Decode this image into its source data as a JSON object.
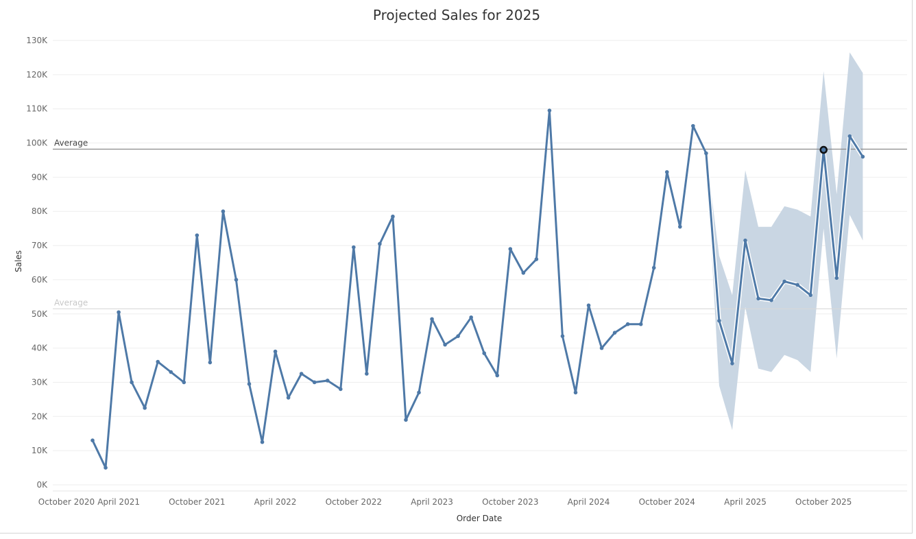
{
  "title": "Projected Sales for 2025",
  "chart_data": {
    "type": "line",
    "title": "Projected Sales for 2025",
    "xlabel": "Order Date",
    "ylabel": "Sales",
    "ylim": [
      0,
      130000
    ],
    "y_ticks": [
      "0K",
      "10K",
      "20K",
      "30K",
      "40K",
      "50K",
      "60K",
      "70K",
      "80K",
      "90K",
      "100K",
      "110K",
      "120K",
      "130K"
    ],
    "x_ticks": [
      {
        "label": "October 2020",
        "month_index": 0
      },
      {
        "label": "April 2021",
        "month_index": 3
      },
      {
        "label": "October 2021",
        "month_index": 9
      },
      {
        "label": "April 2022",
        "month_index": 15
      },
      {
        "label": "October 2022",
        "month_index": 21
      },
      {
        "label": "April 2023",
        "month_index": 27
      },
      {
        "label": "October 2023",
        "month_index": 33
      },
      {
        "label": "April 2024",
        "month_index": 39
      },
      {
        "label": "October 2024",
        "month_index": 45
      },
      {
        "label": "April 2025",
        "month_index": 51
      },
      {
        "label": "October 2025",
        "month_index": 57
      }
    ],
    "first_month": "November 2020",
    "last_month": "December 2025",
    "grid": true,
    "line_color": "#4e79a7",
    "band_color": "#c9d6e3",
    "series": [
      {
        "values": [
          13000,
          5000,
          50500,
          30000,
          22500,
          36000,
          33000,
          30000,
          73000,
          35800,
          80000,
          60000,
          29500,
          12500,
          39000,
          25500,
          32500,
          30000,
          30500,
          28000,
          69500,
          32500,
          70500,
          78500,
          19000,
          27000,
          48500,
          41000,
          43500,
          49000,
          38500,
          32000,
          69000,
          62000,
          66000,
          109500,
          43500,
          27000,
          52500,
          40000,
          44500,
          47000,
          47000,
          63500,
          91500,
          75500,
          105000,
          97000,
          48000,
          35500,
          71500,
          54500,
          54000,
          59500,
          58500,
          55500,
          98000,
          60500,
          102000,
          96000
        ]
      }
    ],
    "forecast_band": {
      "start_index": 47,
      "lower": [
        97000,
        29000,
        16000,
        52000,
        34000,
        33000,
        38000,
        36500,
        33000,
        75000,
        37000,
        79000,
        71500
      ],
      "upper": [
        97000,
        67000,
        55500,
        92000,
        75500,
        75500,
        81500,
        80500,
        78500,
        121000,
        85000,
        126500,
        120500
      ]
    },
    "reference_lines": [
      {
        "label": "Average",
        "value": 98200,
        "color": "#8a8a8a",
        "label_color": "#444444"
      },
      {
        "label": "Average",
        "value": 51500,
        "color": "#d8d8d8",
        "label_color": "#c8c8c8"
      }
    ],
    "highlighted_point_index": 56
  }
}
